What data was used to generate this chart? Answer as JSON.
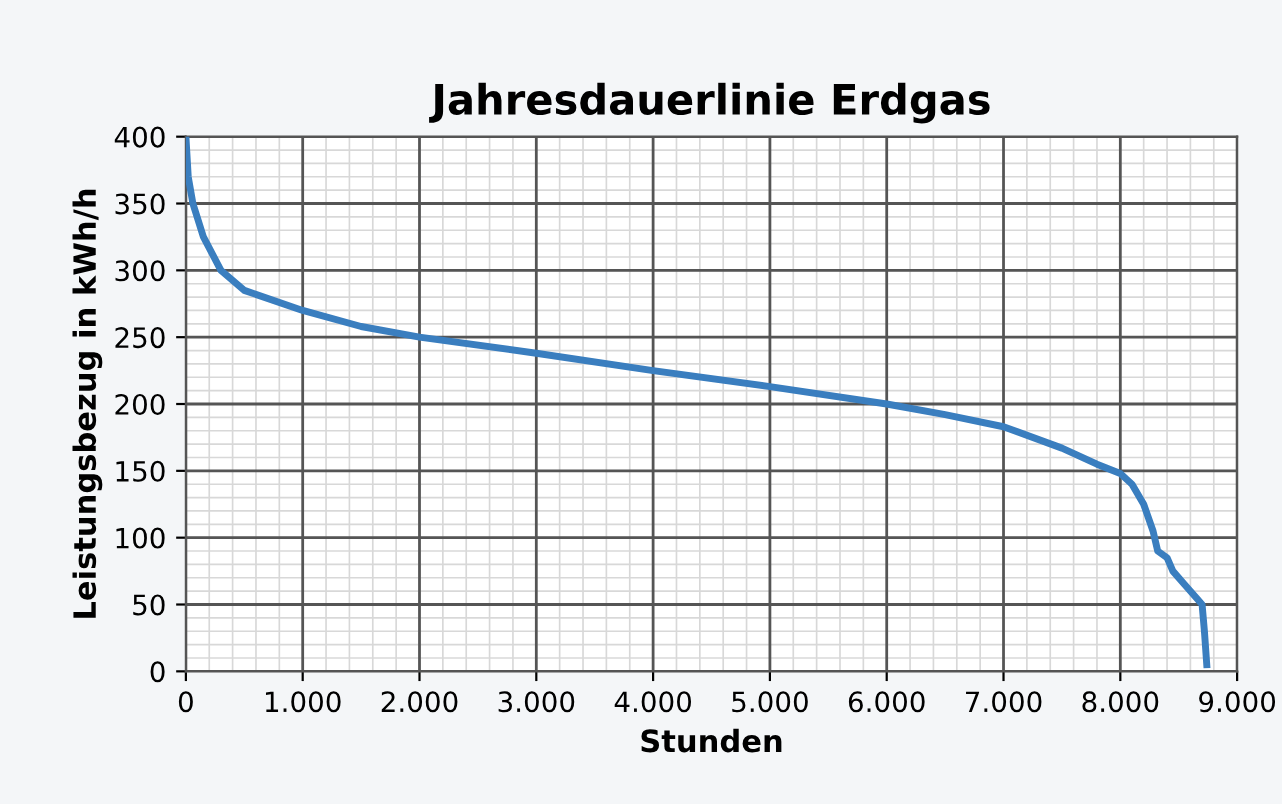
{
  "chart_data": {
    "type": "line",
    "title": "Jahresdauerlinie Erdgas",
    "xlabel": "Stunden",
    "ylabel": "Leistungsbezug in kWh/h",
    "x": [
      0,
      20,
      60,
      150,
      300,
      500,
      1000,
      1500,
      2000,
      3000,
      4000,
      5000,
      6000,
      6500,
      7000,
      7500,
      7800,
      8000,
      8100,
      8200,
      8280,
      8320,
      8400,
      8450,
      8550,
      8650,
      8700,
      8720,
      8740
    ],
    "series": [
      {
        "color": "#3a7ebf",
        "values": [
          400,
          370,
          350,
          325,
          300,
          285,
          270,
          258,
          250,
          238,
          225,
          213,
          200,
          192,
          183,
          167,
          155,
          148,
          140,
          125,
          105,
          90,
          85,
          75,
          65,
          55,
          50,
          30,
          5
        ]
      }
    ],
    "xlim": [
      0,
      9000
    ],
    "ylim": [
      0,
      400
    ],
    "xticks": [
      0,
      {
        "value": 1000,
        "label": "1.000"
      },
      {
        "value": 2000,
        "label": "2.000"
      },
      {
        "value": 3000,
        "label": "3.000"
      },
      {
        "value": 4000,
        "label": "4.000"
      },
      {
        "value": 5000,
        "label": "5.000"
      },
      {
        "value": 6000,
        "label": "6.000"
      },
      {
        "value": 7000,
        "label": "7.000"
      },
      {
        "value": 8000,
        "label": "8.000"
      },
      {
        "value": 9000,
        "label": "9.000"
      }
    ],
    "yticks": [
      0,
      50,
      100,
      150,
      200,
      250,
      300,
      350,
      400
    ],
    "grid": true,
    "marker": "none",
    "line_style": "solid"
  }
}
